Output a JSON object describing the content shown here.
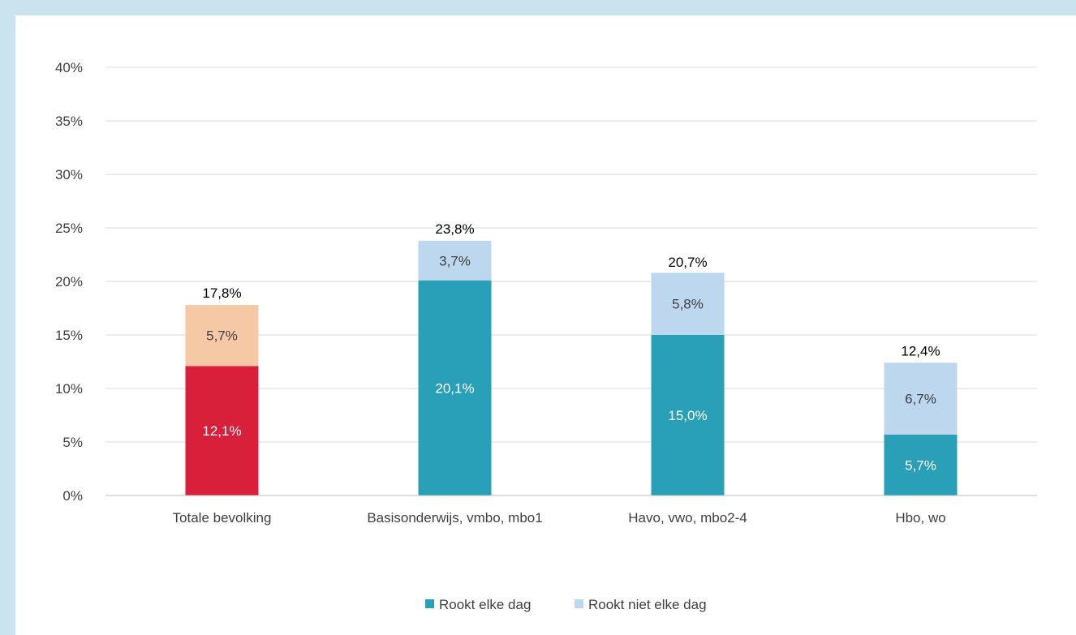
{
  "chart_data": {
    "type": "bar",
    "stacked": true,
    "categories": [
      "Totale bevolking",
      "Basisonderwijs, vmbo, mbo1",
      "Havo, vwo, mbo2-4",
      "Hbo, wo"
    ],
    "series": [
      {
        "name": "Rookt elke dag",
        "values": [
          12.1,
          20.1,
          15.0,
          5.7
        ],
        "labels": [
          "12,1%",
          "20,1%",
          "15,0%",
          "5,7%"
        ],
        "color": "#2a9fb8",
        "first_bar_color": "#d9203b"
      },
      {
        "name": "Rookt niet elke dag",
        "values": [
          5.7,
          3.7,
          5.8,
          6.7
        ],
        "labels": [
          "5,7%",
          "3,7%",
          "5,8%",
          "6,7%"
        ],
        "color": "#bdd7ee",
        "first_bar_color": "#f6c9a6"
      }
    ],
    "totals": [
      17.8,
      23.8,
      20.7,
      12.4
    ],
    "total_labels": [
      "17,8%",
      "23,8%",
      "20,7%",
      "12,4%"
    ],
    "ylim": [
      0,
      40
    ],
    "ytick_values": [
      0,
      5,
      10,
      15,
      20,
      25,
      30,
      35,
      40
    ],
    "yticks": [
      "0%",
      "5%",
      "10%",
      "15%",
      "20%",
      "25%",
      "30%",
      "35%",
      "40%"
    ],
    "grid": true,
    "legend_position": "bottom",
    "title": "",
    "xlabel": "",
    "ylabel": ""
  },
  "legend": {
    "item1": "Rookt elke dag",
    "item2": "Rookt niet elke dag"
  }
}
